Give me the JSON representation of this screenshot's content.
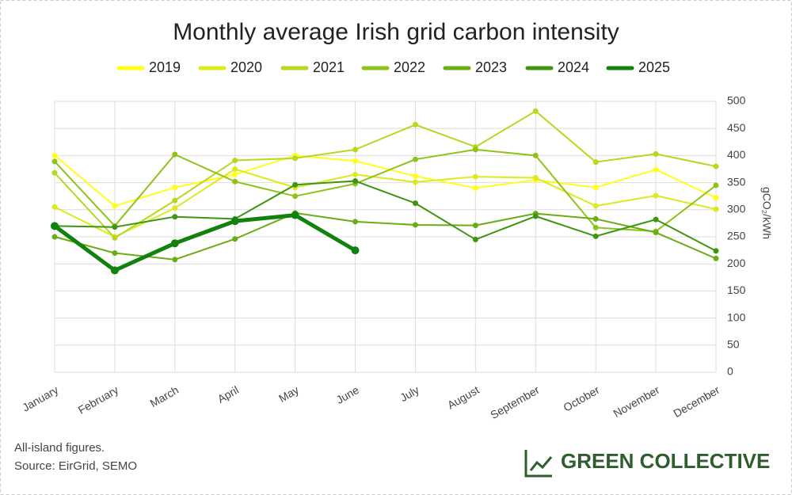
{
  "chart_data": {
    "type": "line",
    "title": "Monthly average Irish grid carbon intensity",
    "y_label": "gCO₂/kWh",
    "categories": [
      "January",
      "February",
      "March",
      "April",
      "May",
      "June",
      "July",
      "August",
      "September",
      "October",
      "November",
      "December"
    ],
    "series": [
      {
        "name": "2019",
        "color": "#ffff1a",
        "values": [
          400,
          307,
          341,
          365,
          400,
          390,
          362,
          340,
          355,
          341,
          374,
          322
        ]
      },
      {
        "name": "2020",
        "color": "#dcea1e",
        "values": [
          305,
          250,
          303,
          375,
          341,
          365,
          351,
          361,
          359,
          307,
          326,
          301
        ]
      },
      {
        "name": "2021",
        "color": "#b7d81e",
        "values": [
          368,
          248,
          317,
          391,
          395,
          411,
          457,
          416,
          482,
          388,
          403,
          380
        ]
      },
      {
        "name": "2022",
        "color": "#8fc31a",
        "values": [
          389,
          270,
          402,
          352,
          325,
          348,
          393,
          411,
          400,
          267,
          260,
          345
        ]
      },
      {
        "name": "2023",
        "color": "#6aad14",
        "values": [
          250,
          220,
          208,
          246,
          294,
          278,
          272,
          271,
          293,
          283,
          258,
          210
        ]
      },
      {
        "name": "2024",
        "color": "#3f9412",
        "values": [
          270,
          268,
          287,
          283,
          346,
          353,
          312,
          245,
          288,
          251,
          282,
          224
        ]
      },
      {
        "name": "2025",
        "color": "#12820f",
        "values": [
          270,
          188,
          238,
          279,
          290,
          225,
          null,
          null,
          null,
          null,
          null,
          null
        ]
      }
    ],
    "ylim": [
      0,
      500
    ],
    "yticks": [
      0,
      50,
      100,
      150,
      200,
      250,
      300,
      350,
      400,
      450,
      500
    ],
    "grid": true,
    "legend": "top",
    "notes": [
      "All-island figures.",
      "Source: EirGrid, SEMO"
    ],
    "brand": "GREEN COLLECTIVE"
  }
}
